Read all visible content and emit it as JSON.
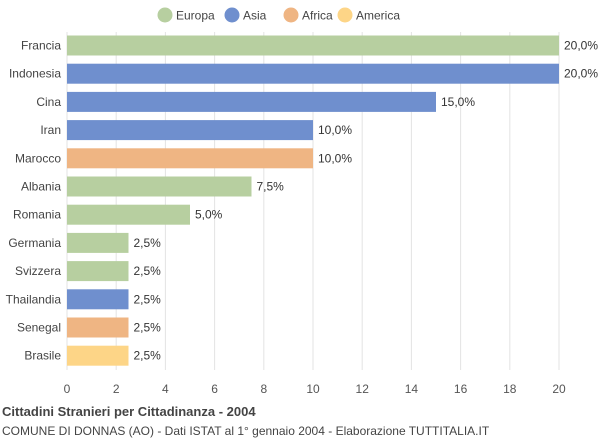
{
  "chart_data": {
    "type": "bar",
    "orientation": "horizontal",
    "title": "Cittadini Stranieri per Cittadinanza - 2004",
    "subtitle": "COMUNE DI DONNAS (AO) - Dati ISTAT al 1° gennaio 2004 - Elaborazione TUTTITALIA.IT",
    "xlim": [
      0,
      20
    ],
    "x_ticks": [
      "0",
      "2",
      "4",
      "6",
      "8",
      "10",
      "12",
      "14",
      "16",
      "18",
      "20"
    ],
    "grid": true,
    "legend_position": "top",
    "legend": [
      {
        "name": "Europa",
        "color": "#b7cfa0"
      },
      {
        "name": "Asia",
        "color": "#6f8fce"
      },
      {
        "name": "Africa",
        "color": "#efb583"
      },
      {
        "name": "America",
        "color": "#fdd587"
      }
    ],
    "categories": [
      "Francia",
      "Indonesia",
      "Cina",
      "Iran",
      "Marocco",
      "Albania",
      "Romania",
      "Germania",
      "Svizzera",
      "Thailandia",
      "Senegal",
      "Brasile"
    ],
    "values": [
      20.0,
      20.0,
      15.0,
      10.0,
      10.0,
      7.5,
      5.0,
      2.5,
      2.5,
      2.5,
      2.5,
      2.5
    ],
    "value_labels": [
      "20,0%",
      "20,0%",
      "15,0%",
      "10,0%",
      "10,0%",
      "7,5%",
      "5,0%",
      "2,5%",
      "2,5%",
      "2,5%",
      "2,5%",
      "2,5%"
    ],
    "continents": [
      "Europa",
      "Asia",
      "Asia",
      "Asia",
      "Africa",
      "Europa",
      "Europa",
      "Europa",
      "Europa",
      "Asia",
      "Africa",
      "America"
    ]
  }
}
